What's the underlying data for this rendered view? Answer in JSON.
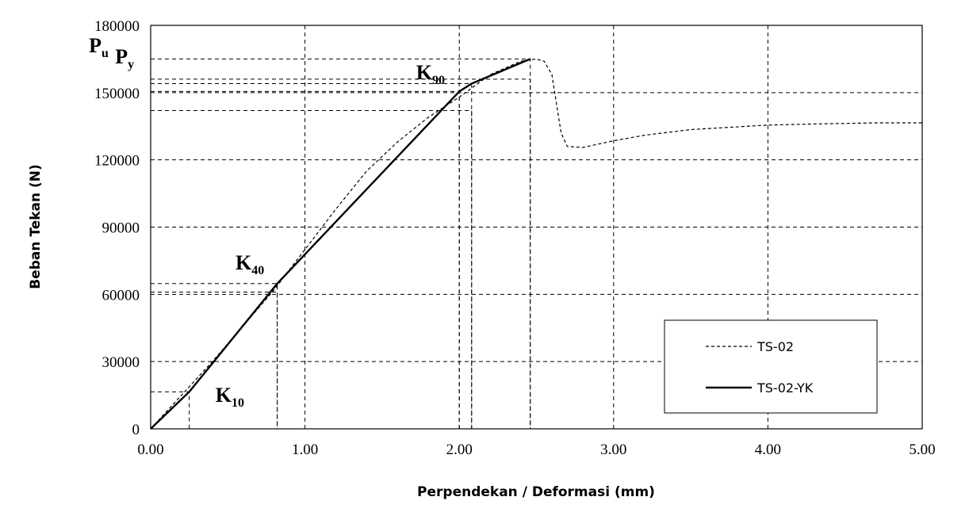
{
  "chart_data": {
    "type": "line",
    "title": "",
    "xlabel": "Perpendekan / Deformasi (mm)",
    "ylabel": "Beban Tekan (N)",
    "xlim": [
      0,
      5
    ],
    "ylim": [
      0,
      180000
    ],
    "x_ticks": [
      0,
      1,
      2,
      3,
      4,
      5
    ],
    "x_tick_labels": [
      "0.00",
      "1.00",
      "2.00",
      "3.00",
      "4.00",
      "5.00"
    ],
    "y_ticks": [
      0,
      30000,
      60000,
      90000,
      120000,
      150000,
      180000
    ],
    "y_tick_labels": [
      "0",
      "30000",
      "60000",
      "90000",
      "120000",
      "150000",
      "180000"
    ],
    "grid": true,
    "legend": "bottom-right",
    "series": [
      {
        "name": "TS-02",
        "style": "dashed",
        "color": "#000000",
        "x": [
          0,
          0.2,
          0.4,
          0.6,
          0.8,
          1.0,
          1.2,
          1.4,
          1.6,
          1.8,
          2.0,
          2.2,
          2.4,
          2.5,
          2.55,
          2.6,
          2.63,
          2.66,
          2.7,
          2.8,
          3.0,
          3.2,
          3.5,
          4.0,
          4.3,
          4.7,
          5.0
        ],
        "y": [
          0,
          15000,
          30000,
          46000,
          62000,
          80000,
          98000,
          115000,
          128000,
          139000,
          148000,
          158000,
          164000,
          165000,
          164000,
          158000,
          145000,
          132000,
          126000,
          125500,
          128500,
          131000,
          133500,
          135500,
          136000,
          136500,
          136500
        ]
      },
      {
        "name": "TS-02-YK",
        "style": "solid",
        "color": "#000000",
        "x": [
          0,
          0.25,
          0.82,
          2.0,
          2.08,
          2.46
        ],
        "y": [
          0,
          16500,
          64800,
          150500,
          154000,
          165000
        ]
      }
    ],
    "annotations": [
      {
        "text": "K",
        "sub": "10",
        "x": 0.42,
        "y": 12000
      },
      {
        "text": "K",
        "sub": "40",
        "x": 0.55,
        "y": 71000
      },
      {
        "text": "K",
        "sub": "90",
        "x": 1.72,
        "y": 156000
      },
      {
        "text": "P",
        "sub": "u",
        "x": -0.4,
        "y": 168000
      },
      {
        "text": "P",
        "sub": "y",
        "x": -0.23,
        "y": 163000
      }
    ],
    "reference_lines": [
      {
        "x": 0.25,
        "y": 16500
      },
      {
        "x": 0.82,
        "y": 64800
      },
      {
        "x": 0.82,
        "y": 61000
      },
      {
        "x": 2.0,
        "y": 150500
      },
      {
        "x": 2.08,
        "y": 154000
      },
      {
        "x": 2.08,
        "y": 142000
      },
      {
        "x": 2.46,
        "y": 165000
      },
      {
        "x": 2.46,
        "y": 156000
      }
    ]
  }
}
